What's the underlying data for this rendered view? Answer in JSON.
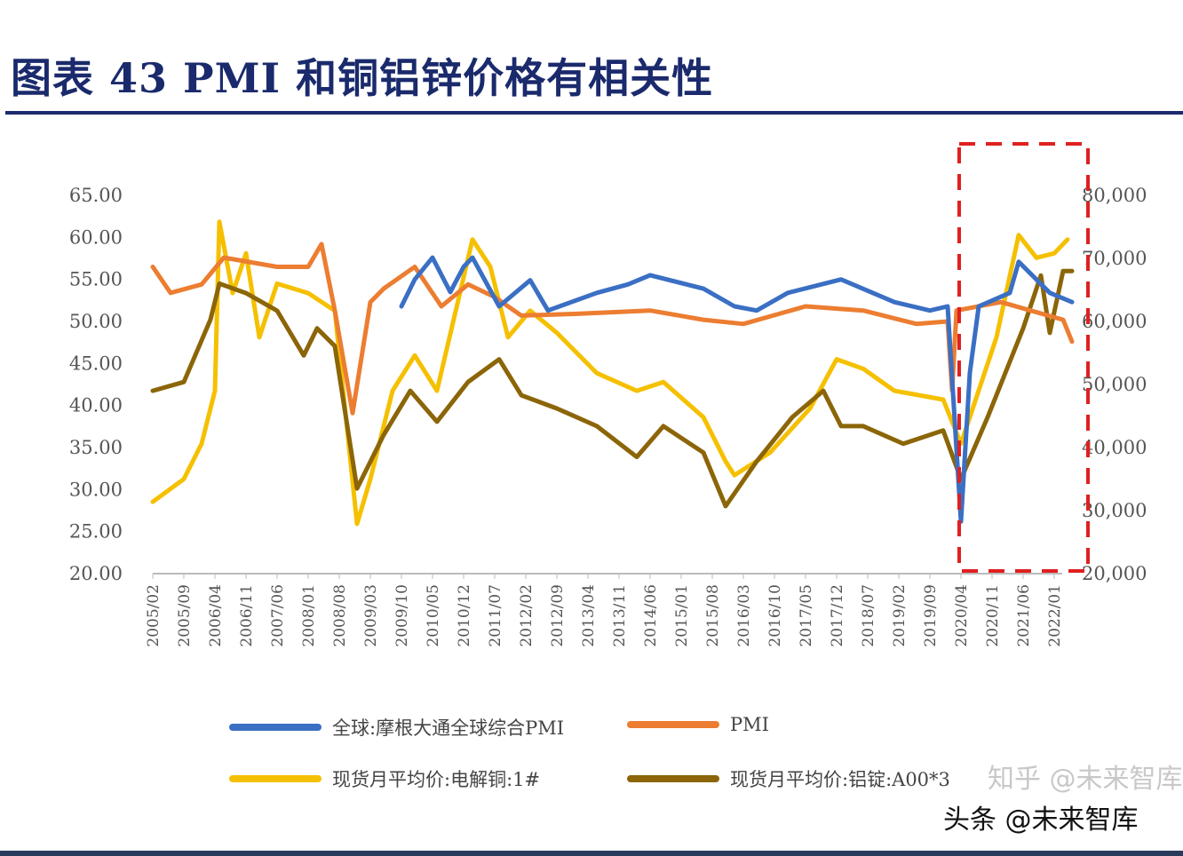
{
  "title": "图表 43 PMI 和铜铝锌价格有相关性",
  "watermark_zhihu": "知乎 @未来智库",
  "watermark_toutiao": "头条 @未来智库",
  "chart_data": {
    "type": "line",
    "title": "",
    "xlabel": "",
    "ylabel": "",
    "grid": false,
    "legend_placement": "bottom",
    "x_ticks": [
      "2005/02",
      "2005/09",
      "2006/04",
      "2006/11",
      "2007/06",
      "2008/01",
      "2008/08",
      "2009/03",
      "2009/10",
      "2010/05",
      "2010/12",
      "2011/07",
      "2012/02",
      "2012/09",
      "2013/04",
      "2013/11",
      "2014/06",
      "2015/01",
      "2015/08",
      "2016/03",
      "2016/10",
      "2017/05",
      "2017/12",
      "2018/07",
      "2019/02",
      "2019/09",
      "2020/04",
      "2020/11",
      "2021/06",
      "2022/01"
    ],
    "y_left": {
      "range": [
        20,
        65
      ],
      "ticks": [
        "20.00",
        "25.00",
        "30.00",
        "35.00",
        "40.00",
        "45.00",
        "50.00",
        "55.00",
        "60.00",
        "65.00"
      ]
    },
    "y_right": {
      "range": [
        20000,
        80000
      ],
      "ticks": [
        "20,000",
        "30,000",
        "40,000",
        "50,000",
        "60,000",
        "70,000",
        "80,000"
      ]
    },
    "highlight_box": {
      "from": "2020/04",
      "to": "2022/05",
      "color": "#e02020"
    },
    "series": [
      {
        "name": "全球:摩根大通全球综合PMI",
        "axis": "left",
        "color": "#3a6fc4",
        "points": [
          [
            "2009/10",
            51.8
          ],
          [
            "2010/01",
            55
          ],
          [
            "2010/05",
            57.6
          ],
          [
            "2010/09",
            53.5
          ],
          [
            "2010/12",
            56.5
          ],
          [
            "2011/02",
            57.6
          ],
          [
            "2011/08",
            51.8
          ],
          [
            "2012/03",
            54.9
          ],
          [
            "2012/07",
            51.3
          ],
          [
            "2013/06",
            53.4
          ],
          [
            "2014/01",
            54.4
          ],
          [
            "2014/06",
            55.5
          ],
          [
            "2015/06",
            53.9
          ],
          [
            "2016/01",
            51.8
          ],
          [
            "2016/06",
            51.3
          ],
          [
            "2017/01",
            53.4
          ],
          [
            "2018/01",
            55
          ],
          [
            "2019/01",
            52.3
          ],
          [
            "2019/09",
            51.3
          ],
          [
            "2020/01",
            51.8
          ],
          [
            "2020/04",
            26.2
          ],
          [
            "2020/06",
            43.9
          ],
          [
            "2020/08",
            51.8
          ],
          [
            "2021/03",
            53.4
          ],
          [
            "2021/05",
            57.1
          ],
          [
            "2021/12",
            53.4
          ],
          [
            "2022/05",
            52.3
          ]
        ]
      },
      {
        "name": "PMI",
        "axis": "left",
        "color": "#ec7d31",
        "points": [
          [
            "2005/02",
            56.5
          ],
          [
            "2005/06",
            53.4
          ],
          [
            "2006/01",
            54.4
          ],
          [
            "2006/06",
            57.6
          ],
          [
            "2007/06",
            56.5
          ],
          [
            "2008/01",
            56.5
          ],
          [
            "2008/04",
            59.2
          ],
          [
            "2008/07",
            51.3
          ],
          [
            "2008/11",
            39.1
          ],
          [
            "2009/03",
            52.3
          ],
          [
            "2009/06",
            53.9
          ],
          [
            "2010/01",
            56.5
          ],
          [
            "2010/07",
            51.8
          ],
          [
            "2011/01",
            54.4
          ],
          [
            "2011/07",
            52.9
          ],
          [
            "2012/01",
            50.7
          ],
          [
            "2013/01",
            50.9
          ],
          [
            "2014/06",
            51.3
          ],
          [
            "2015/06",
            50.2
          ],
          [
            "2016/03",
            49.7
          ],
          [
            "2017/05",
            51.8
          ],
          [
            "2018/06",
            51.3
          ],
          [
            "2019/06",
            49.7
          ],
          [
            "2020/01",
            50
          ],
          [
            "2020/02",
            41.8
          ],
          [
            "2020/03",
            51.3
          ],
          [
            "2021/01",
            52.3
          ],
          [
            "2022/03",
            50.2
          ],
          [
            "2022/05",
            47.6
          ]
        ]
      },
      {
        "name": "现货月平均价:电解铜:1#",
        "axis": "right",
        "color": "#f5c000",
        "points": [
          [
            "2005/02",
            31400
          ],
          [
            "2005/09",
            35000
          ],
          [
            "2006/01",
            40600
          ],
          [
            "2006/04",
            49000
          ],
          [
            "2006/05",
            75800
          ],
          [
            "2006/08",
            64500
          ],
          [
            "2006/11",
            70800
          ],
          [
            "2007/02",
            57500
          ],
          [
            "2007/06",
            66000
          ],
          [
            "2008/01",
            64500
          ],
          [
            "2008/07",
            61700
          ],
          [
            "2008/12",
            27900
          ],
          [
            "2009/03",
            35000
          ],
          [
            "2009/08",
            49000
          ],
          [
            "2010/01",
            54600
          ],
          [
            "2010/06",
            49000
          ],
          [
            "2011/02",
            73000
          ],
          [
            "2011/06",
            68700
          ],
          [
            "2011/10",
            57500
          ],
          [
            "2012/03",
            61700
          ],
          [
            "2012/09",
            58200
          ],
          [
            "2013/06",
            51800
          ],
          [
            "2014/03",
            49000
          ],
          [
            "2014/09",
            50400
          ],
          [
            "2015/06",
            44800
          ],
          [
            "2015/11",
            37800
          ],
          [
            "2016/01",
            35600
          ],
          [
            "2016/09",
            39200
          ],
          [
            "2017/06",
            46200
          ],
          [
            "2017/12",
            54000
          ],
          [
            "2018/06",
            52500
          ],
          [
            "2019/01",
            49000
          ],
          [
            "2019/12",
            47600
          ],
          [
            "2020/04",
            40600
          ],
          [
            "2020/12",
            57500
          ],
          [
            "2021/05",
            73700
          ],
          [
            "2021/09",
            70100
          ],
          [
            "2022/01",
            70800
          ],
          [
            "2022/04",
            73000
          ]
        ]
      },
      {
        "name": "现货月平均价:铝锭:A00*3",
        "axis": "right",
        "color": "#8b6508",
        "points": [
          [
            "2005/02",
            49000
          ],
          [
            "2005/09",
            50400
          ],
          [
            "2006/03",
            60300
          ],
          [
            "2006/05",
            66000
          ],
          [
            "2006/11",
            64500
          ],
          [
            "2007/06",
            61700
          ],
          [
            "2007/12",
            54600
          ],
          [
            "2008/03",
            58900
          ],
          [
            "2008/07",
            56100
          ],
          [
            "2008/12",
            33500
          ],
          [
            "2009/06",
            42000
          ],
          [
            "2009/12",
            49000
          ],
          [
            "2010/06",
            44100
          ],
          [
            "2011/01",
            50400
          ],
          [
            "2011/08",
            54000
          ],
          [
            "2012/01",
            48300
          ],
          [
            "2012/09",
            46200
          ],
          [
            "2013/06",
            43400
          ],
          [
            "2014/03",
            38500
          ],
          [
            "2014/09",
            43400
          ],
          [
            "2015/06",
            39200
          ],
          [
            "2015/11",
            30700
          ],
          [
            "2016/06",
            37800
          ],
          [
            "2017/02",
            44800
          ],
          [
            "2017/09",
            49000
          ],
          [
            "2018/01",
            43400
          ],
          [
            "2018/06",
            43400
          ],
          [
            "2019/03",
            40600
          ],
          [
            "2019/12",
            42700
          ],
          [
            "2020/04",
            35000
          ],
          [
            "2020/10",
            44800
          ],
          [
            "2021/06",
            58900
          ],
          [
            "2021/10",
            67300
          ],
          [
            "2021/12",
            58200
          ],
          [
            "2022/03",
            68000
          ],
          [
            "2022/05",
            68000
          ]
        ]
      }
    ]
  }
}
